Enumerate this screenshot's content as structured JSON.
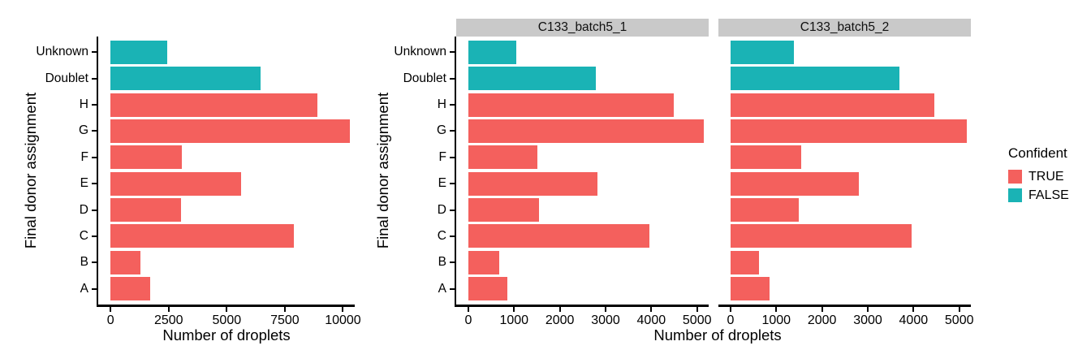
{
  "chart_data": {
    "type": "bar",
    "orientation": "horizontal",
    "title": "",
    "xlabel": "Number of droplets",
    "ylabel": "Final donor assignment",
    "grid": false,
    "legend_position": "right",
    "categories_top_to_bottom": [
      "Unknown",
      "Doublet",
      "H",
      "G",
      "F",
      "E",
      "D",
      "C",
      "B",
      "A"
    ],
    "confident_by_category": [
      "FALSE",
      "FALSE",
      "TRUE",
      "TRUE",
      "TRUE",
      "TRUE",
      "TRUE",
      "TRUE",
      "TRUE",
      "TRUE"
    ],
    "panels": [
      {
        "title": null,
        "x_ticks": [
          0,
          2500,
          5000,
          7500,
          10000
        ],
        "x_tick_max": 10000,
        "xlim": [
          0,
          10500
        ],
        "values": [
          2430,
          6450,
          8890,
          10310,
          3060,
          5630,
          3030,
          7900,
          1290,
          1710
        ]
      },
      {
        "title": "C133_batch5_1",
        "x_ticks": [
          0,
          1000,
          2000,
          3000,
          4000,
          5000
        ],
        "x_tick_max": 5000,
        "xlim": [
          0,
          5300
        ],
        "values": [
          1040,
          2790,
          4490,
          5150,
          1510,
          2830,
          1540,
          3950,
          670,
          850
        ]
      },
      {
        "title": "C133_batch5_2",
        "x_ticks": [
          0,
          1000,
          2000,
          3000,
          4000,
          5000
        ],
        "x_tick_max": 5000,
        "xlim": [
          0,
          5300
        ],
        "values": [
          1390,
          3700,
          4450,
          5160,
          1550,
          2800,
          1490,
          3960,
          630,
          860
        ]
      }
    ],
    "legend": {
      "title": "Confident",
      "entries": [
        {
          "label": "TRUE",
          "color": "#F4605D"
        },
        {
          "label": "FALSE",
          "color": "#1AB3B5"
        }
      ]
    }
  },
  "colors": {
    "confident_true": "#F4605D",
    "confident_false": "#1AB3B5",
    "strip_bg": "#C9C9C9",
    "axis": "#000000",
    "background": "#FFFFFF"
  }
}
